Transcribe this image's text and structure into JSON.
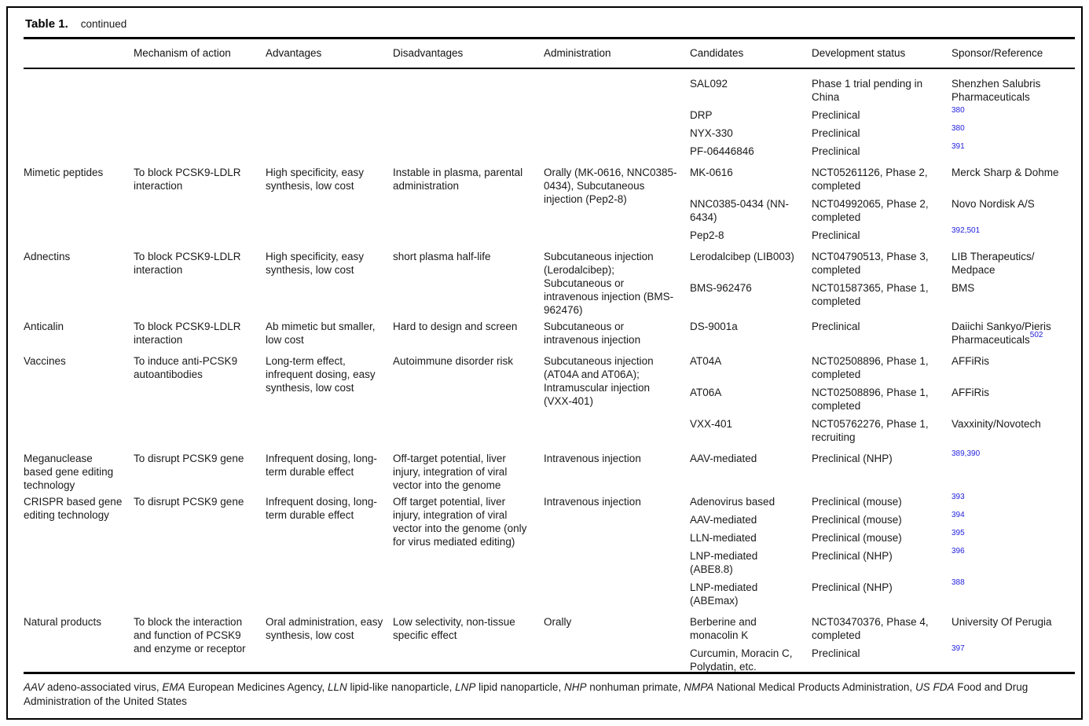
{
  "table": {
    "title": "Table 1.",
    "subtitle": "continued",
    "columns": [
      "",
      "Mechanism of action",
      "Advantages",
      "Disadvantages",
      "Administration",
      "Candidates",
      "Development status",
      "Sponsor/Reference"
    ],
    "reference_color": "#2422dd",
    "groups": [
      {
        "category": "",
        "mechanism": "",
        "advantages": "",
        "disadvantages": "",
        "administration": "",
        "entries": [
          {
            "candidate": "SAL092",
            "status": "Phase 1 trial pending in China",
            "sponsor": "Shenzhen Salubris Pharmaceuticals",
            "ref": ""
          },
          {
            "candidate": "DRP",
            "status": "Preclinical",
            "sponsor": "",
            "ref": "380"
          },
          {
            "candidate": "NYX-330",
            "status": "Preclinical",
            "sponsor": "",
            "ref": "380"
          },
          {
            "candidate": "PF-06446846",
            "status": "Preclinical",
            "sponsor": "",
            "ref": "391"
          }
        ]
      },
      {
        "category": "Mimetic peptides",
        "mechanism": "To block PCSK9-LDLR interaction",
        "advantages": "High specificity, easy synthesis, low cost",
        "disadvantages": "Instable in plasma, parental administration",
        "administration": "Orally (MK-0616, NNC0385-0434), Subcutaneous injection (Pep2-8)",
        "entries": [
          {
            "candidate": "MK-0616",
            "status": "NCT05261126, Phase 2, completed",
            "sponsor": "Merck Sharp & Dohme",
            "ref": ""
          },
          {
            "candidate": "NNC0385-0434 (NN-6434)",
            "status": "NCT04992065, Phase 2, completed",
            "sponsor": "Novo Nordisk A/S",
            "ref": ""
          },
          {
            "candidate": "Pep2-8",
            "status": "Preclinical",
            "sponsor": "",
            "ref": "392,501"
          }
        ]
      },
      {
        "category": "Adnectins",
        "mechanism": "To block PCSK9-LDLR interaction",
        "advantages": "High specificity, easy synthesis, low cost",
        "disadvantages": "short plasma half-life",
        "administration": "Subcutaneous injection (Lerodalcibep); Subcutaneous or intravenous injection (BMS-962476)",
        "entries": [
          {
            "candidate": "Lerodalcibep (LIB003)",
            "status": "NCT04790513, Phase 3, completed",
            "sponsor": "LIB Therapeutics/ Medpace",
            "ref": ""
          },
          {
            "candidate": "BMS-962476",
            "status": "NCT01587365, Phase 1, completed",
            "sponsor": "BMS",
            "ref": ""
          }
        ]
      },
      {
        "category": "Anticalin",
        "mechanism": "To block PCSK9-LDLR interaction",
        "advantages": "Ab mimetic but smaller, low cost",
        "disadvantages": "Hard to design and screen",
        "administration": "Subcutaneous or intravenous injection",
        "entries": [
          {
            "candidate": "DS-9001a",
            "status": "Preclinical",
            "sponsor": "Daiichi Sankyo/Pieris Pharmaceuticals",
            "ref": "502"
          }
        ]
      },
      {
        "category": "Vaccines",
        "mechanism": "To induce anti-PCSK9 autoantibodies",
        "advantages": "Long-term effect, infrequent dosing, easy synthesis, low cost",
        "disadvantages": "Autoimmune disorder risk",
        "administration": "Subcutaneous injection (AT04A and AT06A); Intramuscular injection (VXX-401)",
        "entries": [
          {
            "candidate": "AT04A",
            "status": "NCT02508896, Phase 1, completed",
            "sponsor": "AFFiRis",
            "ref": ""
          },
          {
            "candidate": "AT06A",
            "status": "NCT02508896, Phase 1, completed",
            "sponsor": "AFFiRis",
            "ref": ""
          },
          {
            "candidate": "VXX-401",
            "status": "NCT05762276, Phase 1, recruiting",
            "sponsor": "Vaxxinity/Novotech",
            "ref": ""
          }
        ]
      },
      {
        "category": "Meganuclease based gene editing technology",
        "mechanism": "To disrupt PCSK9 gene",
        "advantages": "Infrequent dosing, long-term durable effect",
        "disadvantages": "Off-target potential, liver injury, integration of viral vector into the genome",
        "administration": "Intravenous injection",
        "entries": [
          {
            "candidate": "AAV-mediated",
            "status": "Preclinical (NHP)",
            "sponsor": "",
            "ref": "389,390"
          }
        ]
      },
      {
        "category": "CRISPR based gene editing technology",
        "mechanism": "To disrupt PCSK9 gene",
        "advantages": "Infrequent dosing, long-term durable effect",
        "disadvantages": "Off target potential, liver injury, integration of viral vector into the genome (only for virus mediated editing)",
        "administration": "Intravenous injection",
        "entries": [
          {
            "candidate": "Adenovirus based",
            "status": "Preclinical (mouse)",
            "sponsor": "",
            "ref": "393"
          },
          {
            "candidate": "AAV-mediated",
            "status": "Preclinical (mouse)",
            "sponsor": "",
            "ref": "394"
          },
          {
            "candidate": "LLN-mediated",
            "status": "Preclinical (mouse)",
            "sponsor": "",
            "ref": "395"
          },
          {
            "candidate": "LNP-mediated (ABE8.8)",
            "status": "Preclinical (NHP)",
            "sponsor": "",
            "ref": "396"
          },
          {
            "candidate": "LNP-mediated (ABEmax)",
            "status": "Preclinical (NHP)",
            "sponsor": "",
            "ref": "388"
          }
        ]
      },
      {
        "category": "Natural products",
        "mechanism": "To block the interaction and function of PCSK9 and enzyme or receptor",
        "advantages": "Oral administration, easy synthesis, low cost",
        "disadvantages": "Low selectivity, non-tissue specific effect",
        "administration": "Orally",
        "entries": [
          {
            "candidate": "Berberine and monacolin K",
            "status": "NCT03470376, Phase 4, completed",
            "sponsor": "University Of Perugia",
            "ref": ""
          },
          {
            "candidate": "Curcumin, Moracin C, Polydatin, etc.",
            "status": "Preclinical",
            "sponsor": "",
            "ref": "397"
          }
        ]
      }
    ],
    "footnote_parts": [
      {
        "text": "AAV",
        "italic": true
      },
      {
        "text": " adeno-associated virus, ",
        "italic": false
      },
      {
        "text": "EMA",
        "italic": true
      },
      {
        "text": " European Medicines Agency, ",
        "italic": false
      },
      {
        "text": "LLN",
        "italic": true
      },
      {
        "text": " lipid-like nanoparticle, ",
        "italic": false
      },
      {
        "text": "LNP",
        "italic": true
      },
      {
        "text": " lipid nanoparticle, ",
        "italic": false
      },
      {
        "text": "NHP",
        "italic": true
      },
      {
        "text": " nonhuman primate, ",
        "italic": false
      },
      {
        "text": "NMPA",
        "italic": true
      },
      {
        "text": " National Medical Products Administration, ",
        "italic": false
      },
      {
        "text": "US FDA",
        "italic": true
      },
      {
        "text": " Food and Drug Administration of the United States",
        "italic": false
      }
    ]
  }
}
